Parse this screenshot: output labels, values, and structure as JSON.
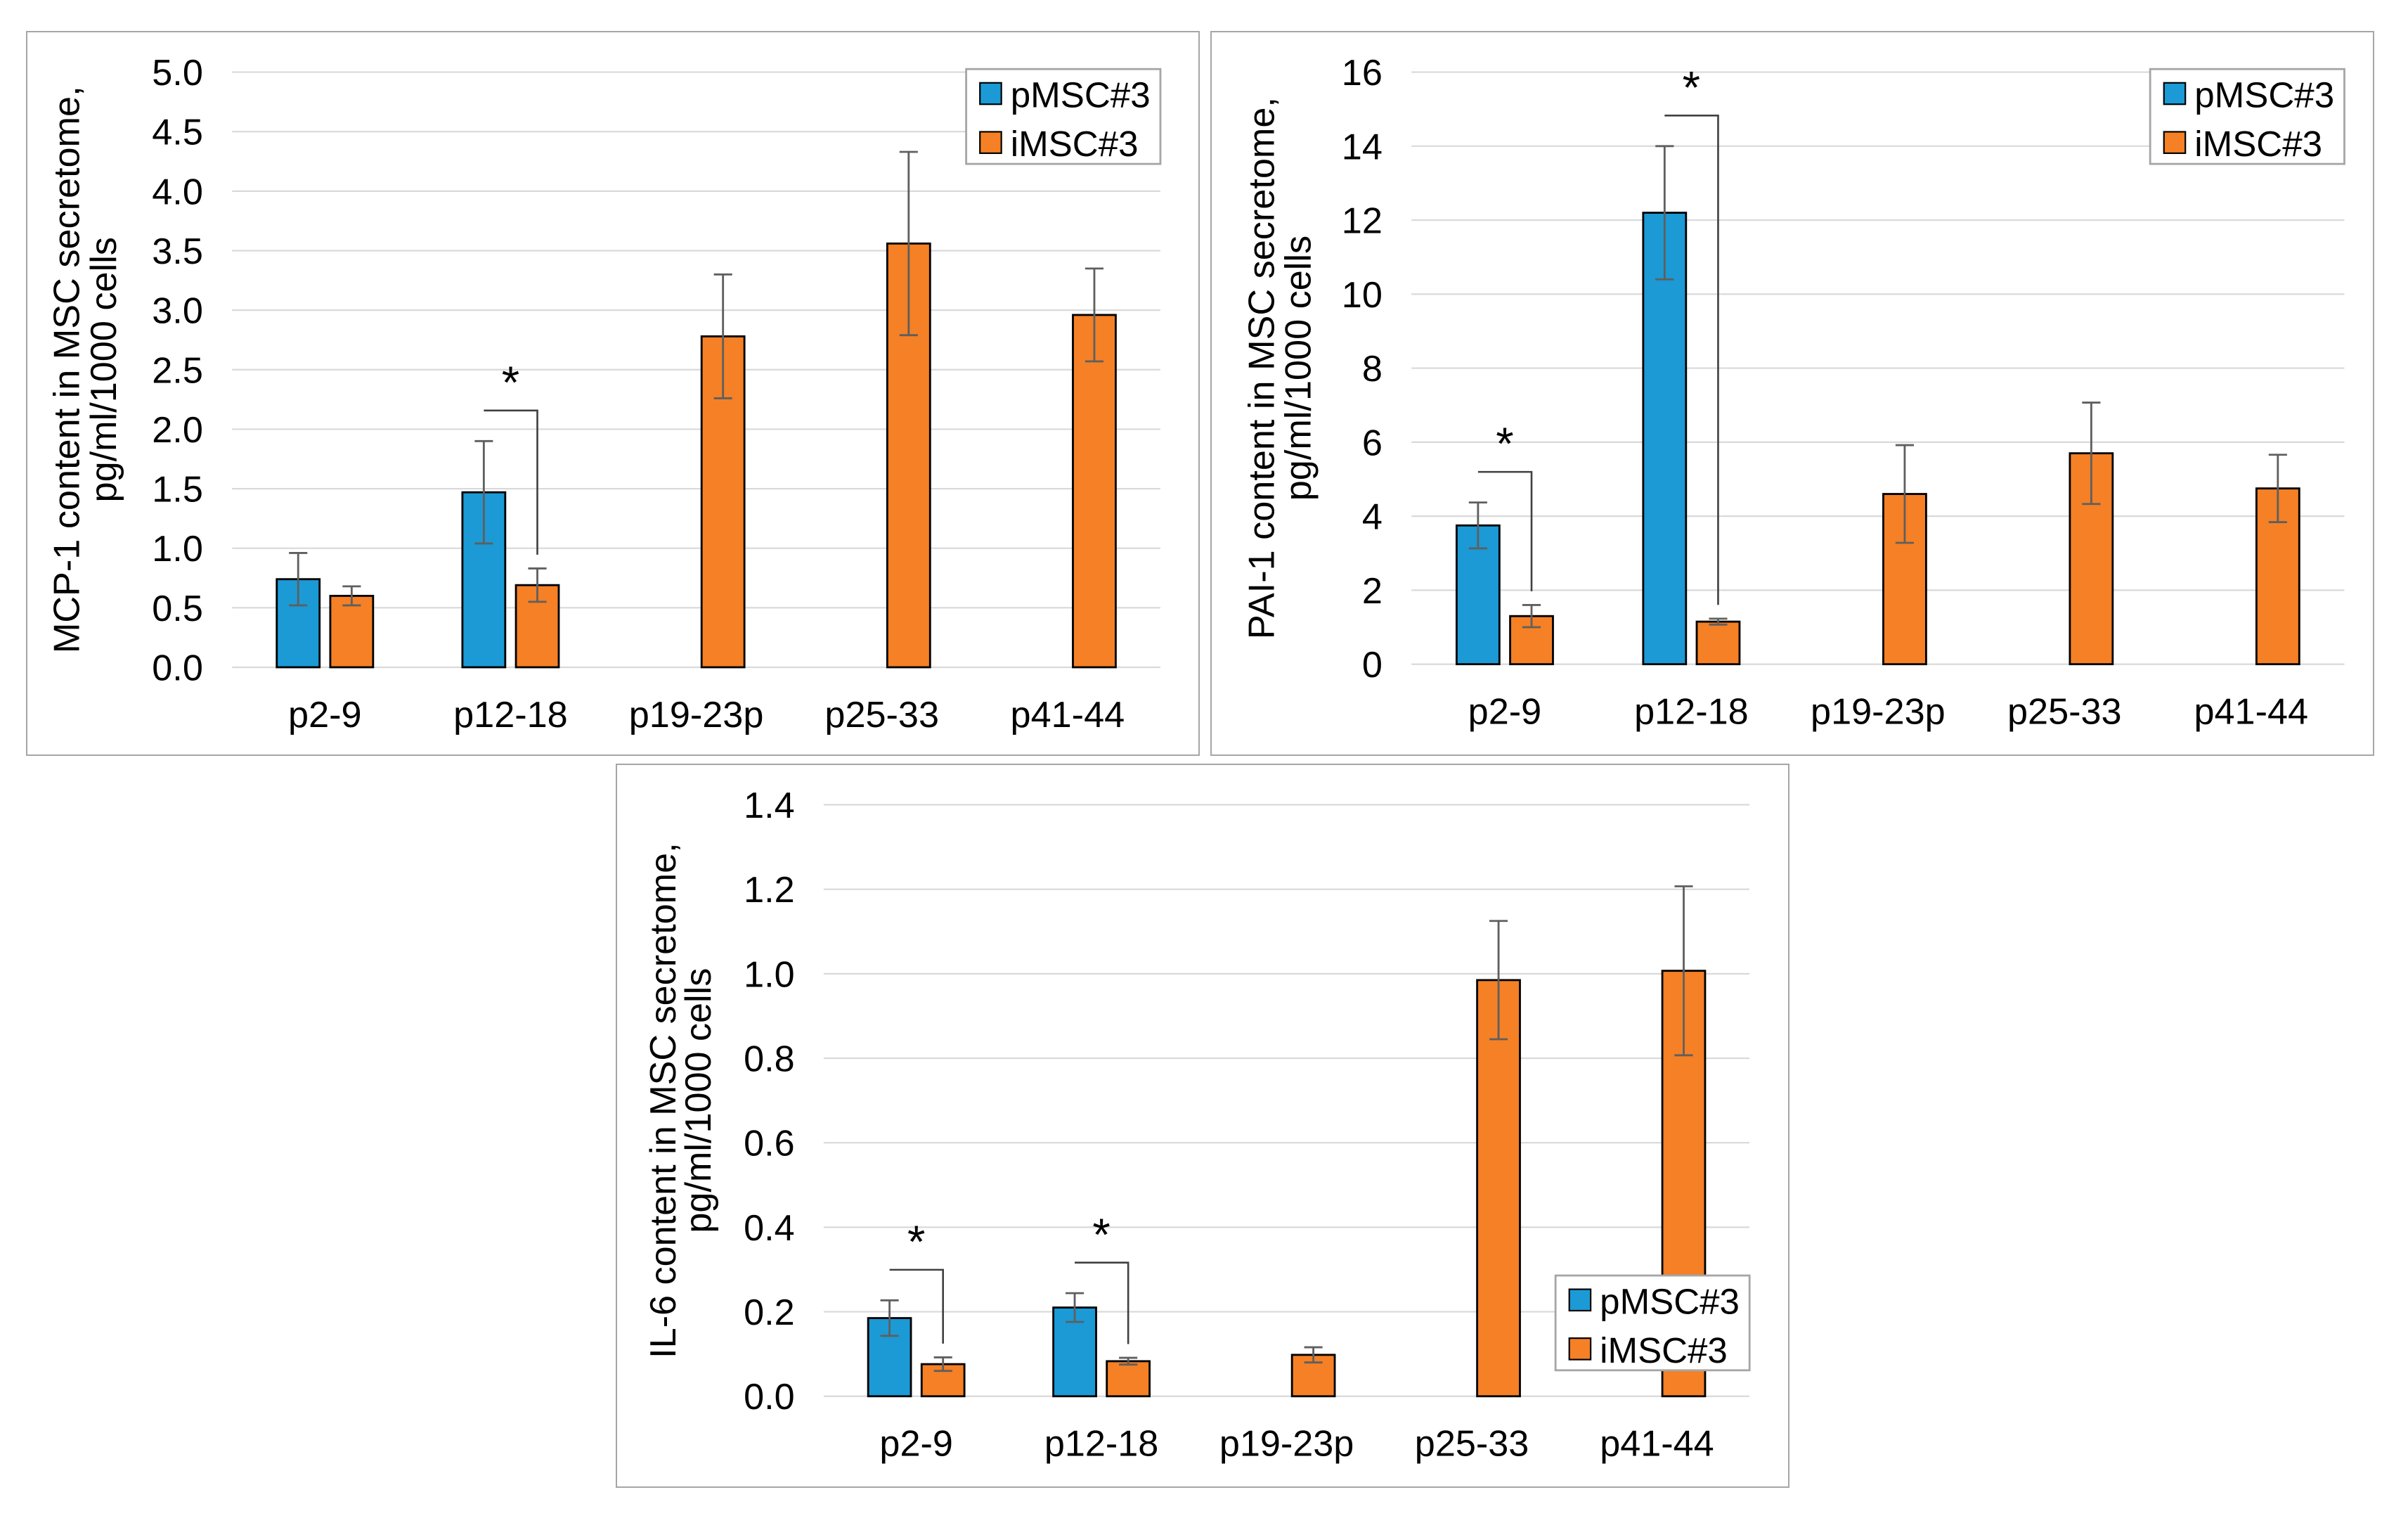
{
  "chart_data": [
    {
      "type": "bar",
      "categories": [
        "p2-9",
        "p12-18",
        "p19-23p",
        "p25-33",
        "p41-44"
      ],
      "series": [
        {
          "name": "pMSC#3",
          "color": "#1b9ad6",
          "values": [
            0.74,
            1.47,
            null,
            null,
            null
          ],
          "errors": [
            0.22,
            0.43,
            null,
            null,
            null
          ]
        },
        {
          "name": "iMSC#3",
          "color": "#f58025",
          "values": [
            0.6,
            0.69,
            2.78,
            3.56,
            2.96
          ],
          "errors": [
            0.08,
            0.14,
            0.52,
            0.77,
            0.39
          ]
        }
      ],
      "ylabel": [
        "MCP-1 content in MSC secretome,",
        "pg/ml/1000 cells"
      ],
      "ylim": [
        0,
        5
      ],
      "yticks": [
        "0.0",
        "0.5",
        "1.0",
        "1.5",
        "2.0",
        "2.5",
        "3.0",
        "3.5",
        "4.0",
        "4.5",
        "5.0"
      ],
      "grid": true,
      "legend": "top-right",
      "significance": [
        {
          "category": "p12-18",
          "label": "*"
        }
      ]
    },
    {
      "type": "bar",
      "categories": [
        "p2-9",
        "p12-18",
        "p19-23p",
        "p25-33",
        "p41-44"
      ],
      "series": [
        {
          "name": "pMSC#3",
          "color": "#1b9ad6",
          "values": [
            3.75,
            12.2,
            null,
            null,
            null
          ],
          "errors": [
            0.62,
            1.8,
            null,
            null,
            null
          ]
        },
        {
          "name": "iMSC#3",
          "color": "#f58025",
          "values": [
            1.3,
            1.15,
            4.6,
            5.7,
            4.75
          ],
          "errors": [
            0.3,
            0.08,
            1.32,
            1.37,
            0.91
          ]
        }
      ],
      "ylabel": [
        "PAI-1 content in MSC secretome,",
        "pg/ml/1000 cells"
      ],
      "ylim": [
        0,
        16
      ],
      "yticks": [
        "0",
        "2",
        "4",
        "6",
        "8",
        "10",
        "12",
        "14",
        "16"
      ],
      "grid": true,
      "legend": "top-right",
      "significance": [
        {
          "category": "p2-9",
          "label": "*"
        },
        {
          "category": "p12-18",
          "label": "*"
        }
      ]
    },
    {
      "type": "bar",
      "categories": [
        "p2-9",
        "p12-18",
        "p19-23p",
        "p25-33",
        "p41-44"
      ],
      "series": [
        {
          "name": "pMSC#3",
          "color": "#1b9ad6",
          "values": [
            0.185,
            0.21,
            null,
            null,
            null
          ],
          "errors": [
            0.042,
            0.034,
            null,
            null,
            null
          ]
        },
        {
          "name": "iMSC#3",
          "color": "#f58025",
          "values": [
            0.076,
            0.083,
            0.098,
            0.985,
            1.007
          ],
          "errors": [
            0.016,
            0.008,
            0.018,
            0.14,
            0.2
          ]
        }
      ],
      "ylabel": [
        "IL-6 content in MSC secretome,",
        "pg/ml/1000 cells"
      ],
      "ylim": [
        0,
        1.4
      ],
      "yticks": [
        "0.0",
        "0.2",
        "0.4",
        "0.6",
        "0.8",
        "1.0",
        "1.2",
        "1.4"
      ],
      "grid": true,
      "legend": "bottom-right",
      "significance": [
        {
          "category": "p2-9",
          "label": "*"
        },
        {
          "category": "p12-18",
          "label": "*"
        }
      ]
    }
  ]
}
